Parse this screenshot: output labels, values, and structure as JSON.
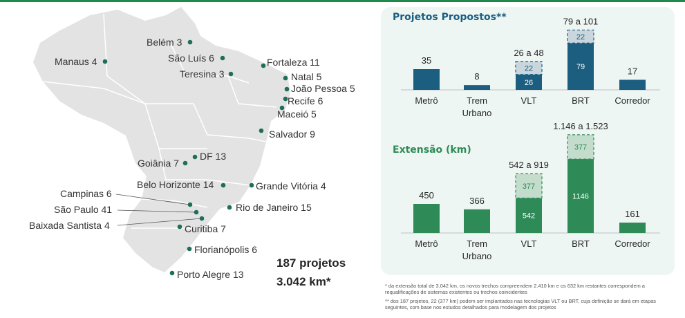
{
  "colors": {
    "brand_green": "#1f8a4c",
    "projetos_bar": "#1b5e80",
    "projetos_range": "#c9d6dd",
    "extensao_bar": "#2e8b57",
    "extensao_range": "#c4dccb",
    "map_fill": "#e3e3e3",
    "dot": "#1f6e5b"
  },
  "map": {
    "cities": [
      {
        "label": "Belém 3"
      },
      {
        "label": "Manaus 4"
      },
      {
        "label": "São Luís 6"
      },
      {
        "label": "Fortaleza 11"
      },
      {
        "label": "Teresina 3"
      },
      {
        "label": "Natal 5"
      },
      {
        "label": "João Pessoa 5"
      },
      {
        "label": "Recife 6"
      },
      {
        "label": "Maceió 5"
      },
      {
        "label": "Salvador 9"
      },
      {
        "label": "DF 13"
      },
      {
        "label": "Goiânia 7"
      },
      {
        "label": "Belo Horizonte 14"
      },
      {
        "label": "Grande Vitória 4"
      },
      {
        "label": "Campinas 6"
      },
      {
        "label": "São Paulo 41"
      },
      {
        "label": "Rio de Janeiro 15"
      },
      {
        "label": "Baixada Santista 4"
      },
      {
        "label": "Curitiba  7"
      },
      {
        "label": "Florianópolis 6"
      },
      {
        "label": "Porto Alegre 13"
      }
    ]
  },
  "summary": {
    "projects": "187 projetos",
    "extension": "3.042 km*"
  },
  "chart_data": [
    {
      "type": "bar",
      "title": "Projetos Propostos**",
      "categories": [
        "Metrô",
        "Trem\nUrbano",
        "VLT",
        "BRT",
        "Corredor"
      ],
      "series": [
        {
          "values": [
            35,
            8,
            26,
            79,
            17
          ]
        },
        {
          "values": [
            0,
            0,
            22,
            22,
            0
          ]
        }
      ],
      "totals": [
        "35",
        "8",
        "26 a 48",
        "79 a 101",
        "17"
      ],
      "inner_labels": [
        {
          "category": "VLT",
          "base": "26",
          "range": "22"
        },
        {
          "category": "BRT",
          "base": "79",
          "range": "22"
        }
      ],
      "stacked": true
    },
    {
      "type": "bar",
      "title": "Extensão (km)",
      "categories": [
        "Metrô",
        "Trem\nUrbano",
        "VLT",
        "BRT",
        "Corredor"
      ],
      "series": [
        {
          "values": [
            450,
            366,
            542,
            1146,
            161
          ]
        },
        {
          "values": [
            0,
            0,
            377,
            377,
            0
          ]
        }
      ],
      "totals": [
        "450",
        "366",
        "542 a 919",
        "1.146 a 1.523",
        "161"
      ],
      "inner_labels": [
        {
          "category": "VLT",
          "base": "542",
          "range": "377"
        },
        {
          "category": "BRT",
          "base": "1146",
          "range": "377"
        }
      ],
      "stacked": true
    }
  ],
  "footnotes": {
    "note1": "* da extensão total de 3.042 km, os novos trechos compreendem 2.410 km e os 632 km restantes correspondem a requalificações de sistemas existentes ou trechos coincidentes",
    "note2": "** dos 187 projetos, 22 (377 km) podem ser implantados nas tecnologias VLT ou BRT, cuja definição se dará em etapas seguintes, com base nos estudos detalhados para modelagem dos projetos"
  }
}
